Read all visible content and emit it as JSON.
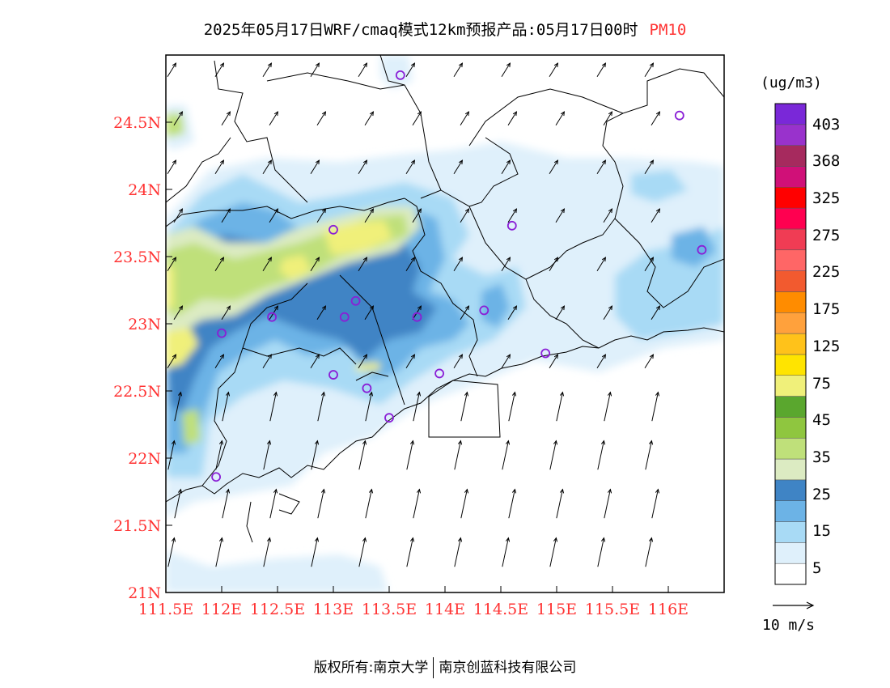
{
  "title": {
    "text": "2025年05月17日WRF/cmaq模式12km预报产品:05月17日00时",
    "variable": "PM10"
  },
  "map": {
    "lon_range": [
      111.5,
      116.5
    ],
    "lat_range": [
      21.0,
      25.0
    ],
    "x_ticks": [
      "111.5E",
      "112E",
      "112.5E",
      "113E",
      "113.5E",
      "114E",
      "114.5E",
      "115E",
      "115.5E",
      "116E"
    ],
    "y_ticks": [
      "21N",
      "21.5N",
      "22N",
      "22.5N",
      "23N",
      "23.5N",
      "24N",
      "24.5N"
    ],
    "station_markers": [
      [
        113.6,
        24.85
      ],
      [
        116.1,
        24.55
      ],
      [
        113.0,
        23.7
      ],
      [
        114.6,
        23.73
      ],
      [
        116.3,
        23.55
      ],
      [
        112.0,
        22.93
      ],
      [
        112.45,
        23.05
      ],
      [
        113.1,
        23.05
      ],
      [
        113.2,
        23.17
      ],
      [
        113.75,
        23.05
      ],
      [
        114.35,
        23.1
      ],
      [
        113.0,
        22.62
      ],
      [
        113.3,
        22.52
      ],
      [
        113.95,
        22.63
      ],
      [
        114.9,
        22.78
      ],
      [
        113.5,
        22.3
      ],
      [
        111.95,
        21.86
      ]
    ],
    "colors": {
      "tick_label": "#ff3333",
      "marker": "#8a1fd6"
    }
  },
  "colorbar": {
    "unit": "(ug/m3)",
    "bins": [
      {
        "color": "#ffffff"
      },
      {
        "color": "#dff0fb"
      },
      {
        "color": "#a8daf5"
      },
      {
        "color": "#6cb3e6"
      },
      {
        "color": "#3f84c5"
      },
      {
        "color": "#dcebc2"
      },
      {
        "color": "#bfe07a"
      },
      {
        "color": "#8fc63f"
      },
      {
        "color": "#5aa72e"
      },
      {
        "color": "#f0f07a"
      },
      {
        "color": "#ffe400"
      },
      {
        "color": "#ffc21a"
      },
      {
        "color": "#ffa13c"
      },
      {
        "color": "#ff8c00"
      },
      {
        "color": "#f25a2f"
      },
      {
        "color": "#ff6666"
      },
      {
        "color": "#f03c54"
      },
      {
        "color": "#ff0050"
      },
      {
        "color": "#ff0000"
      },
      {
        "color": "#d01078"
      },
      {
        "color": "#a62a5e"
      },
      {
        "color": "#9932cc"
      },
      {
        "color": "#7a28d8"
      }
    ],
    "labels": [
      "5",
      "15",
      "25",
      "35",
      "45",
      "75",
      "125",
      "175",
      "225",
      "275",
      "325",
      "368",
      "403"
    ]
  },
  "wind": {
    "reference_label": "10 m/s"
  },
  "footer": {
    "left": "版权所有:南京大学",
    "right": "南京创蓝科技有限公司"
  }
}
